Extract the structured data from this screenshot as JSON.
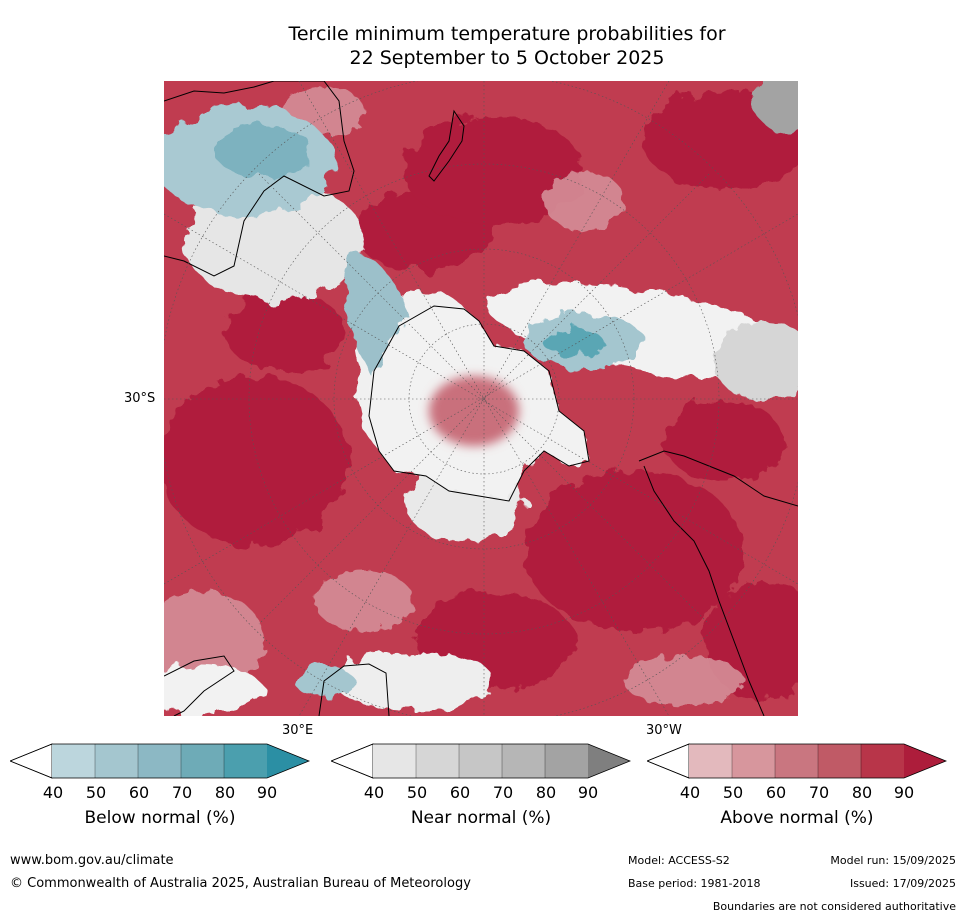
{
  "title": {
    "line1": "Tercile minimum temperature probabilities for",
    "line2": "22 September to 5 October 2025"
  },
  "map": {
    "lat_labels": [
      "30°S"
    ],
    "lon_labels": [
      "30°E",
      "30°W"
    ],
    "colors": {
      "above": [
        "#e3b9bd",
        "#d7969d",
        "#c97680",
        "#c05a66",
        "#b83549",
        "#ad1d3b"
      ],
      "near": [
        "#e6e6e6",
        "#d6d6d6",
        "#c6c6c6",
        "#b6b6b6",
        "#a3a3a3",
        "#7f7f7f"
      ],
      "below": [
        "#bcd6dd",
        "#a4c6cf",
        "#8cb8c4",
        "#6eabb7",
        "#4b9fae",
        "#2b8fa4"
      ],
      "land_outline": "#000000",
      "grid": "#555555"
    }
  },
  "colorbars": [
    {
      "name": "below",
      "title": "Below normal (%)",
      "ticks": [
        "40",
        "50",
        "60",
        "70",
        "80",
        "90"
      ],
      "colors": [
        "#bcd6dd",
        "#a4c6cf",
        "#8cb8c4",
        "#6eabb7",
        "#4b9fae",
        "#2b8fa4"
      ]
    },
    {
      "name": "near",
      "title": "Near normal (%)",
      "ticks": [
        "40",
        "50",
        "60",
        "70",
        "80",
        "90"
      ],
      "colors": [
        "#e6e6e6",
        "#d6d6d6",
        "#c6c6c6",
        "#b6b6b6",
        "#a3a3a3",
        "#7f7f7f"
      ]
    },
    {
      "name": "above",
      "title": "Above normal (%)",
      "ticks": [
        "40",
        "50",
        "60",
        "70",
        "80",
        "90"
      ],
      "colors": [
        "#e3b9bd",
        "#d7969d",
        "#c97680",
        "#c05a66",
        "#b83549",
        "#ad1d3b"
      ]
    }
  ],
  "footer": {
    "url": "www.bom.gov.au/climate",
    "copyright": "© Commonwealth of Australia 2025, Australian Bureau of Meteorology",
    "model": "Model: ACCESS-S2",
    "base_period": "Base period: 1981-2018",
    "model_run": "Model run: 15/09/2025",
    "issued": "Issued: 17/09/2025",
    "boundaries": "Boundaries are not considered authoritative"
  }
}
